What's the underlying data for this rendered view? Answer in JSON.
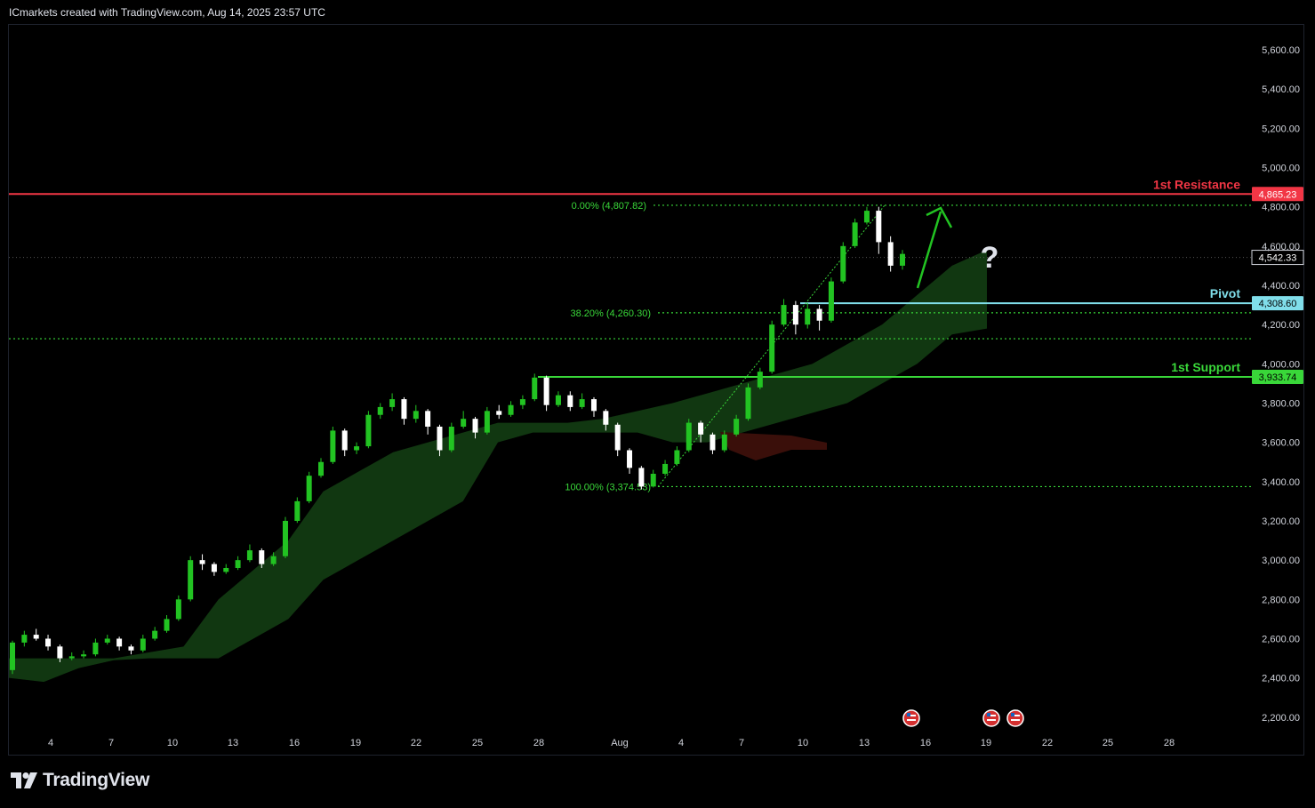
{
  "header": {
    "title": "ICmarkets created with TradingView.com, Aug 14, 2025 23:57 UTC"
  },
  "footer": {
    "brand": "TradingView"
  },
  "colors": {
    "background": "#000000",
    "up_candle": "#22c322",
    "down_candle": "#ffffff",
    "cloud_bull": "#123a12",
    "cloud_bear": "#3a0f0a",
    "resistance": "#f23645",
    "pivot": "#80deea",
    "support": "#39d739",
    "fib": "#39d739",
    "axis_text": "#d1d4dc"
  },
  "chart_data": {
    "type": "candlestick",
    "y_axis": {
      "min": 2100,
      "max": 5700,
      "ticks": [
        "5,600.00",
        "5,400.00",
        "5,200.00",
        "5,000.00",
        "4,800.00",
        "4,600.00",
        "4,400.00",
        "4,200.00",
        "4,000.00",
        "3,800.00",
        "3,600.00",
        "3,400.00",
        "3,200.00",
        "3,000.00",
        "2,800.00",
        "2,600.00",
        "2,400.00",
        "2,200.00"
      ]
    },
    "x_axis": {
      "labels": [
        "4",
        "7",
        "10",
        "13",
        "16",
        "19",
        "22",
        "25",
        "28",
        "Aug",
        "4",
        "7",
        "10",
        "13",
        "16",
        "19",
        "22",
        "25",
        "28"
      ]
    },
    "candles": [
      [
        2440,
        2580,
        2420,
        2590
      ],
      [
        2580,
        2620,
        2560,
        2640
      ],
      [
        2620,
        2600,
        2590,
        2650
      ],
      [
        2600,
        2560,
        2540,
        2620
      ],
      [
        2560,
        2500,
        2480,
        2570
      ],
      [
        2500,
        2510,
        2490,
        2530
      ],
      [
        2510,
        2520,
        2500,
        2540
      ],
      [
        2520,
        2580,
        2510,
        2600
      ],
      [
        2580,
        2600,
        2570,
        2620
      ],
      [
        2600,
        2560,
        2540,
        2610
      ],
      [
        2560,
        2540,
        2520,
        2570
      ],
      [
        2540,
        2600,
        2530,
        2620
      ],
      [
        2600,
        2640,
        2590,
        2660
      ],
      [
        2640,
        2700,
        2630,
        2720
      ],
      [
        2700,
        2800,
        2690,
        2820
      ],
      [
        2800,
        3000,
        2790,
        3020
      ],
      [
        3000,
        2980,
        2950,
        3030
      ],
      [
        2980,
        2940,
        2920,
        2990
      ],
      [
        2940,
        2960,
        2930,
        2980
      ],
      [
        2960,
        3000,
        2950,
        3020
      ],
      [
        3000,
        3050,
        2990,
        3080
      ],
      [
        3050,
        2980,
        2960,
        3060
      ],
      [
        2980,
        3020,
        2970,
        3040
      ],
      [
        3020,
        3200,
        3010,
        3220
      ],
      [
        3200,
        3300,
        3190,
        3320
      ],
      [
        3300,
        3430,
        3290,
        3450
      ],
      [
        3430,
        3500,
        3420,
        3520
      ],
      [
        3500,
        3660,
        3490,
        3680
      ],
      [
        3660,
        3560,
        3530,
        3670
      ],
      [
        3560,
        3580,
        3540,
        3600
      ],
      [
        3580,
        3740,
        3570,
        3760
      ],
      [
        3740,
        3780,
        3720,
        3800
      ],
      [
        3780,
        3820,
        3760,
        3850
      ],
      [
        3820,
        3720,
        3690,
        3830
      ],
      [
        3720,
        3760,
        3700,
        3790
      ],
      [
        3760,
        3680,
        3640,
        3770
      ],
      [
        3680,
        3560,
        3530,
        3690
      ],
      [
        3560,
        3680,
        3550,
        3700
      ],
      [
        3680,
        3720,
        3670,
        3760
      ],
      [
        3720,
        3650,
        3620,
        3730
      ],
      [
        3650,
        3760,
        3640,
        3780
      ],
      [
        3760,
        3740,
        3720,
        3790
      ],
      [
        3740,
        3790,
        3730,
        3810
      ],
      [
        3790,
        3820,
        3770,
        3840
      ],
      [
        3820,
        3930,
        3810,
        3950
      ],
      [
        3930,
        3790,
        3760,
        3940
      ],
      [
        3790,
        3840,
        3780,
        3860
      ],
      [
        3840,
        3780,
        3760,
        3860
      ],
      [
        3780,
        3820,
        3770,
        3850
      ],
      [
        3820,
        3760,
        3730,
        3830
      ],
      [
        3760,
        3690,
        3660,
        3770
      ],
      [
        3690,
        3560,
        3530,
        3700
      ],
      [
        3560,
        3470,
        3440,
        3570
      ],
      [
        3470,
        3375,
        3360,
        3480
      ],
      [
        3375,
        3440,
        3370,
        3460
      ],
      [
        3440,
        3490,
        3430,
        3510
      ],
      [
        3490,
        3560,
        3480,
        3580
      ],
      [
        3560,
        3700,
        3550,
        3720
      ],
      [
        3700,
        3640,
        3600,
        3710
      ],
      [
        3640,
        3560,
        3540,
        3650
      ],
      [
        3560,
        3640,
        3550,
        3660
      ],
      [
        3640,
        3720,
        3630,
        3740
      ],
      [
        3720,
        3880,
        3710,
        3900
      ],
      [
        3880,
        3960,
        3870,
        3980
      ],
      [
        3960,
        4200,
        3950,
        4220
      ],
      [
        4200,
        4300,
        4190,
        4330
      ],
      [
        4300,
        4200,
        4150,
        4320
      ],
      [
        4200,
        4280,
        4180,
        4310
      ],
      [
        4280,
        4220,
        4170,
        4300
      ],
      [
        4220,
        4420,
        4210,
        4440
      ],
      [
        4420,
        4600,
        4410,
        4620
      ],
      [
        4600,
        4720,
        4590,
        4740
      ],
      [
        4720,
        4780,
        4710,
        4800
      ],
      [
        4780,
        4620,
        4560,
        4800
      ],
      [
        4620,
        4500,
        4470,
        4650
      ],
      [
        4500,
        4560,
        4480,
        4580
      ]
    ],
    "ichimoku_cloud": {
      "bull_top": [
        2500,
        2500,
        2500,
        2500,
        2530,
        2560,
        2800,
        2950,
        3100,
        3350,
        3450,
        3550,
        3600,
        3650,
        3700,
        3700,
        3700,
        3720,
        3760,
        3800,
        3850,
        3900,
        3950,
        4000,
        4100,
        4200,
        4350,
        4500,
        4580
      ],
      "bull_bottom": [
        2400,
        2380,
        2450,
        2490,
        2500,
        2500,
        2500,
        2600,
        2700,
        2900,
        3000,
        3100,
        3200,
        3300,
        3600,
        3650,
        3650,
        3650,
        3650,
        3600,
        3600,
        3650,
        3700,
        3750,
        3800,
        3900,
        4000,
        4150,
        4180
      ]
    },
    "levels": [
      {
        "name": "1st Resistance",
        "value": 4865.23,
        "label": "4,865.23",
        "color": "#f23645"
      },
      {
        "name": "Pivot",
        "value": 4308.6,
        "label": "4,308.60",
        "color": "#80deea"
      },
      {
        "name": "1st Support",
        "value": 3933.74,
        "label": "3,933.74",
        "color": "#39d739"
      }
    ],
    "fib_levels": [
      {
        "label": "0.00% (4,807.82)",
        "value": 4807.82
      },
      {
        "label": "38.20% (4,260.30)",
        "value": 4260.3
      },
      {
        "label": "100.00% (3,374.53)",
        "value": 3374.53
      }
    ],
    "extra_dotted_level": 4128,
    "last_price": {
      "value": 4542.33,
      "label": "4,542.33"
    },
    "annotation": {
      "arrow": "up",
      "question_mark": "?"
    }
  }
}
